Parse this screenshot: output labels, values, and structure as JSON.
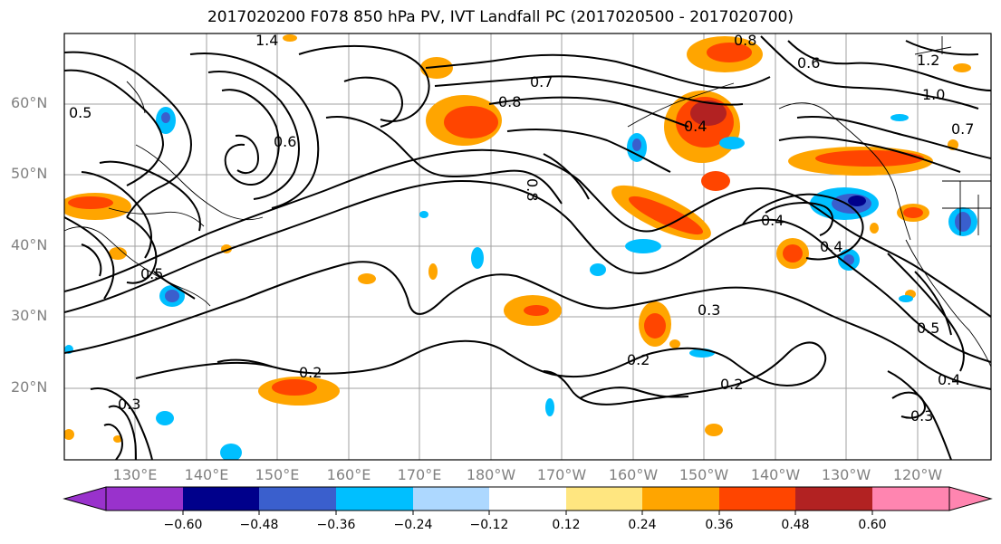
{
  "title": "2017020200 F078 850 hPa PV, IVT Landfall PC (2017020500 - 2017020700)",
  "lat_labels": [
    "60°N",
    "50°N",
    "40°N",
    "30°N",
    "20°N"
  ],
  "lon_labels": [
    "130°E",
    "140°E",
    "150°E",
    "160°E",
    "170°E",
    "180°W",
    "170°W",
    "160°W",
    "150°W",
    "140°W",
    "130°W",
    "120°W"
  ],
  "colorbar": {
    "ticks": [
      "−0.60",
      "−0.48",
      "−0.36",
      "−0.24",
      "−0.12",
      "0.12",
      "0.24",
      "0.36",
      "0.48",
      "0.60"
    ],
    "colors": [
      "#9932cc",
      "#00008b",
      "#3a5fcd",
      "#00bfff",
      "#add8ff",
      "#ffffff",
      "#ffe680",
      "#ffa500",
      "#ff4500",
      "#b22222",
      "#ff85b0"
    ]
  },
  "contour_labels": [
    "0.8",
    "0.8",
    "0.8",
    "0.7",
    "0.6",
    "0.5",
    "0.5",
    "0.4",
    "0.4",
    "0.4",
    "0.3",
    "0.3",
    "0.2",
    "0.2",
    "0.2",
    "0.5",
    "0.4",
    "0.3",
    "1.0",
    "1.2",
    "0.7",
    "0.6",
    "1.4"
  ]
}
